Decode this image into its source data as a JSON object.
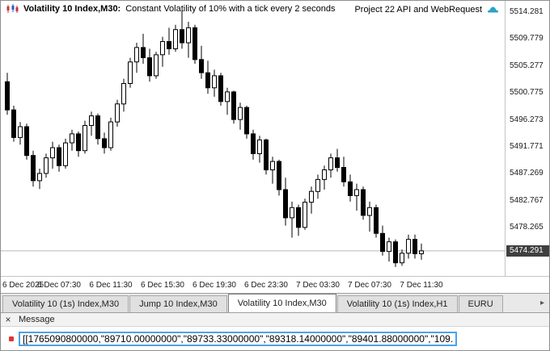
{
  "titlebar": {
    "symbol": "Volatility 10 Index,M30:",
    "description": "Constant Volatility of 10% with a tick every 2 seconds",
    "expert_name": "Project 22 API and WebRequest"
  },
  "chart_data": {
    "type": "candlestick",
    "symbol": "Volatility 10 Index",
    "timeframe": "M30",
    "price_range": [
      5470.1,
      5516.0
    ],
    "current_price": 5474.291,
    "current_price_label": "5474.291",
    "x_start": 8,
    "x_step": 8,
    "y_ticks": [
      "5514.281",
      "5509.779",
      "5505.277",
      "5500.775",
      "5496.273",
      "5491.771",
      "5487.269",
      "5482.767",
      "5478.265"
    ],
    "x_ticks": [
      {
        "index": 0,
        "text": "6 Dec 2025"
      },
      {
        "index": 8,
        "text": "6 Dec 07:30"
      },
      {
        "index": 16,
        "text": "6 Dec 11:30"
      },
      {
        "index": 24,
        "text": "6 Dec 15:30"
      },
      {
        "index": 32,
        "text": "6 Dec 19:30"
      },
      {
        "index": 40,
        "text": "6 Dec 23:30"
      },
      {
        "index": 48,
        "text": "7 Dec 03:30"
      },
      {
        "index": 56,
        "text": "7 Dec 07:30"
      },
      {
        "index": 64,
        "text": "7 Dec 11:30"
      }
    ],
    "ohlc": [
      [
        5502.5,
        5504.0,
        5497.0,
        5497.8
      ],
      [
        5497.8,
        5498.5,
        5492.5,
        5493.2
      ],
      [
        5493.2,
        5495.8,
        5492.0,
        5495.0
      ],
      [
        5495.0,
        5495.5,
        5489.5,
        5490.2
      ],
      [
        5490.2,
        5491.0,
        5485.0,
        5486.0
      ],
      [
        5486.0,
        5488.0,
        5484.6,
        5487.2
      ],
      [
        5487.2,
        5490.5,
        5486.5,
        5489.8
      ],
      [
        5489.8,
        5492.5,
        5488.0,
        5491.5
      ],
      [
        5491.5,
        5492.0,
        5487.5,
        5488.5
      ],
      [
        5488.5,
        5493.0,
        5488.0,
        5492.3
      ],
      [
        5492.3,
        5494.5,
        5491.0,
        5493.8
      ],
      [
        5493.8,
        5494.2,
        5490.0,
        5491.0
      ],
      [
        5491.0,
        5496.0,
        5490.5,
        5495.2
      ],
      [
        5495.2,
        5497.5,
        5493.5,
        5496.8
      ],
      [
        5496.8,
        5497.2,
        5492.0,
        5493.0
      ],
      [
        5493.0,
        5494.0,
        5490.5,
        5491.5
      ],
      [
        5491.5,
        5496.5,
        5491.0,
        5495.8
      ],
      [
        5495.8,
        5499.5,
        5495.0,
        5498.8
      ],
      [
        5498.8,
        5503.0,
        5497.5,
        5502.2
      ],
      [
        5502.2,
        5506.5,
        5501.5,
        5505.8
      ],
      [
        5505.8,
        5509.0,
        5504.0,
        5508.2
      ],
      [
        5508.2,
        5510.5,
        5505.5,
        5506.5
      ],
      [
        5506.5,
        5508.0,
        5502.5,
        5503.5
      ],
      [
        5503.5,
        5507.5,
        5503.0,
        5507.0
      ],
      [
        5507.0,
        5510.0,
        5505.0,
        5509.2
      ],
      [
        5509.2,
        5511.5,
        5507.0,
        5508.0
      ],
      [
        5508.0,
        5512.0,
        5507.5,
        5511.2
      ],
      [
        5511.2,
        5514.3,
        5508.0,
        5509.0
      ],
      [
        5509.0,
        5512.5,
        5506.5,
        5511.5
      ],
      [
        5511.5,
        5512.0,
        5505.5,
        5506.2
      ],
      [
        5506.2,
        5508.5,
        5503.0,
        5504.0
      ],
      [
        5504.0,
        5506.0,
        5500.5,
        5501.5
      ],
      [
        5501.5,
        5504.5,
        5500.0,
        5503.5
      ],
      [
        5503.5,
        5504.0,
        5498.5,
        5499.2
      ],
      [
        5499.2,
        5501.5,
        5497.0,
        5500.8
      ],
      [
        5500.8,
        5501.0,
        5495.5,
        5496.2
      ],
      [
        5496.2,
        5499.0,
        5494.5,
        5498.2
      ],
      [
        5498.2,
        5498.5,
        5493.0,
        5493.8
      ],
      [
        5493.8,
        5494.5,
        5489.5,
        5490.5
      ],
      [
        5490.5,
        5493.5,
        5489.0,
        5492.8
      ],
      [
        5492.8,
        5493.0,
        5487.0,
        5487.8
      ],
      [
        5487.8,
        5490.0,
        5485.5,
        5489.2
      ],
      [
        5489.2,
        5489.5,
        5483.5,
        5484.5
      ],
      [
        5484.5,
        5486.5,
        5478.5,
        5479.8
      ],
      [
        5479.8,
        5482.5,
        5476.5,
        5481.5
      ],
      [
        5481.5,
        5482.0,
        5476.8,
        5478.2
      ],
      [
        5478.2,
        5483.0,
        5477.8,
        5482.4
      ],
      [
        5482.4,
        5485.0,
        5480.5,
        5484.2
      ],
      [
        5484.2,
        5487.0,
        5483.0,
        5486.2
      ],
      [
        5486.2,
        5488.5,
        5484.5,
        5487.8
      ],
      [
        5487.8,
        5490.5,
        5486.5,
        5489.8
      ],
      [
        5489.8,
        5491.3,
        5487.5,
        5488.2
      ],
      [
        5488.2,
        5490.0,
        5485.0,
        5485.8
      ],
      [
        5485.8,
        5487.0,
        5482.5,
        5483.5
      ],
      [
        5483.5,
        5485.5,
        5481.0,
        5484.5
      ],
      [
        5484.5,
        5485.0,
        5479.5,
        5480.2
      ],
      [
        5480.2,
        5482.5,
        5477.5,
        5481.5
      ],
      [
        5481.5,
        5482.0,
        5476.5,
        5477.2
      ],
      [
        5477.2,
        5478.5,
        5473.5,
        5474.2
      ],
      [
        5474.2,
        5476.5,
        5472.5,
        5475.8
      ],
      [
        5475.8,
        5476.2,
        5471.6,
        5472.3
      ],
      [
        5472.3,
        5474.5,
        5471.8,
        5473.9
      ],
      [
        5473.9,
        5477.0,
        5473.0,
        5476.2
      ],
      [
        5476.2,
        5477.0,
        5473.0,
        5473.8
      ],
      [
        5473.8,
        5475.5,
        5472.8,
        5474.291
      ]
    ]
  },
  "tabs": {
    "items": [
      {
        "label": "Volatility 10 (1s) Index,M30"
      },
      {
        "label": "Jump 10 Index,M30"
      },
      {
        "label": "Volatility 10 Index,M30"
      },
      {
        "label": "Volatility 10 (1s) Index,H1"
      },
      {
        "label": "EURU"
      }
    ],
    "scroll_right_icon": "▸"
  },
  "message_panel": {
    "close_icon": "×",
    "title": "Message",
    "message": "[[1765090800000,\"89710.00000000\",\"89733.33000000\",\"89318.14000000\",\"89401.88000000\",\"109."
  },
  "colors": {
    "selection_border": "#4aa3e8",
    "price_badge_bg": "#3f3f3f",
    "bullet_red": "#e03535",
    "ea_icon_teal": "#29a3c7",
    "candle_up": "#ffffff",
    "candle_down": "#000000",
    "price_line": "#b8b8b8"
  }
}
